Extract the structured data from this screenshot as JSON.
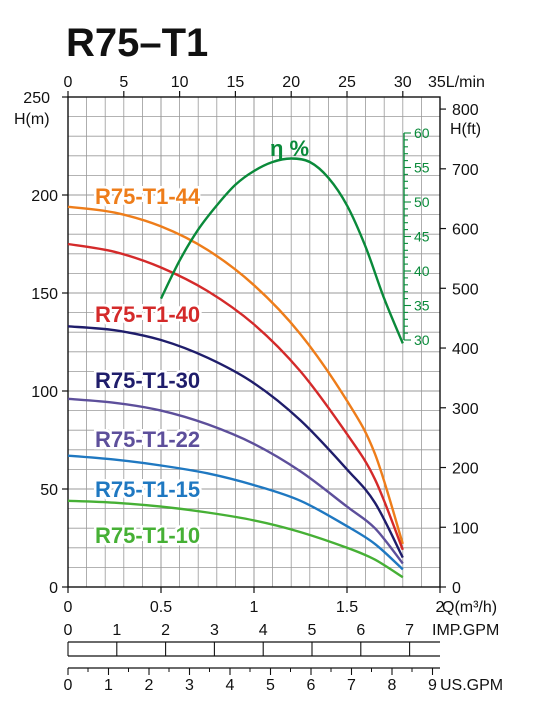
{
  "title": "R75–T1",
  "chart_data": {
    "type": "line",
    "title": "R75–T1",
    "x_axis": {
      "label": "Q(m³/h)",
      "range": [
        0,
        2
      ],
      "ticks": [
        "0",
        "0.5",
        "1",
        "1.5",
        "2"
      ]
    },
    "top_axis": {
      "label": "35L/min",
      "range": [
        0,
        33.33
      ],
      "ticks": [
        "0",
        "5",
        "10",
        "15",
        "20",
        "25",
        "30"
      ]
    },
    "imp_gpm_axis": {
      "label": "IMP.GPM",
      "range": [
        0,
        7.33
      ],
      "ticks": [
        "0",
        "1",
        "2",
        "3",
        "4",
        "5",
        "6",
        "7"
      ]
    },
    "us_gpm_axis": {
      "label": "US.GPM",
      "range": [
        0,
        8.8
      ],
      "ticks": [
        "0",
        "1",
        "2",
        "3",
        "4",
        "5",
        "6",
        "7",
        "8",
        "9"
      ]
    },
    "y_axis": {
      "label": "H(m)",
      "range": [
        0,
        250
      ],
      "ticks": [
        "0",
        "50",
        "100",
        "150",
        "200",
        "250"
      ]
    },
    "y2_axis": {
      "label": "H(ft)",
      "range": [
        0,
        820
      ],
      "ticks": [
        "0",
        "100",
        "200",
        "300",
        "400",
        "500",
        "600",
        "700",
        "800"
      ]
    },
    "eff_axis": {
      "label": "η %",
      "range": [
        30,
        60
      ],
      "ticks": [
        "30",
        "35",
        "40",
        "45",
        "50",
        "55",
        "60"
      ]
    },
    "grid": true,
    "series": [
      {
        "name": "R75-T1-44",
        "color": "#ee7d1a",
        "x": [
          0,
          0.25,
          0.5,
          0.75,
          1.0,
          1.25,
          1.5,
          1.65,
          1.8
        ],
        "y": [
          194,
          191,
          184,
          172,
          154,
          129,
          95,
          68,
          22
        ]
      },
      {
        "name": "R75-T1-40",
        "color": "#d42a2a",
        "x": [
          0,
          0.25,
          0.5,
          0.75,
          1.0,
          1.25,
          1.5,
          1.65,
          1.8
        ],
        "y": [
          175,
          171,
          163,
          151,
          134,
          110,
          78,
          55,
          19
        ]
      },
      {
        "name": "R75-T1-30",
        "color": "#1f1d6b",
        "x": [
          0,
          0.25,
          0.5,
          0.75,
          1.0,
          1.25,
          1.5,
          1.65,
          1.8
        ],
        "y": [
          133,
          131,
          126,
          117,
          104,
          85,
          60,
          43,
          15
        ]
      },
      {
        "name": "R75-T1-22",
        "color": "#5d4f9b",
        "x": [
          0,
          0.25,
          0.5,
          0.75,
          1.0,
          1.25,
          1.5,
          1.65,
          1.8
        ],
        "y": [
          96,
          94,
          90,
          83,
          73,
          59,
          41,
          30,
          12
        ]
      },
      {
        "name": "R75-T1-15",
        "color": "#1f78c1",
        "x": [
          0,
          0.25,
          0.5,
          0.75,
          1.0,
          1.25,
          1.5,
          1.65,
          1.8
        ],
        "y": [
          67,
          65,
          62,
          58,
          52,
          44,
          31,
          22,
          9
        ]
      },
      {
        "name": "R75-T1-10",
        "color": "#46b035",
        "x": [
          0,
          0.25,
          0.5,
          0.75,
          1.0,
          1.25,
          1.5,
          1.65,
          1.8
        ],
        "y": [
          44,
          43,
          41,
          38,
          34,
          28,
          20,
          14,
          5
        ]
      }
    ],
    "efficiency": {
      "name": "η %",
      "color": "#0a8a3a",
      "x": [
        0.5,
        0.6,
        0.7,
        0.8,
        0.9,
        1.0,
        1.1,
        1.2,
        1.3,
        1.4,
        1.5,
        1.6,
        1.7,
        1.8
      ],
      "y": [
        36,
        41.5,
        46,
        49.5,
        52.5,
        54.5,
        55.8,
        56.3,
        55.8,
        53.5,
        49.5,
        43.5,
        36,
        29.5
      ]
    }
  }
}
